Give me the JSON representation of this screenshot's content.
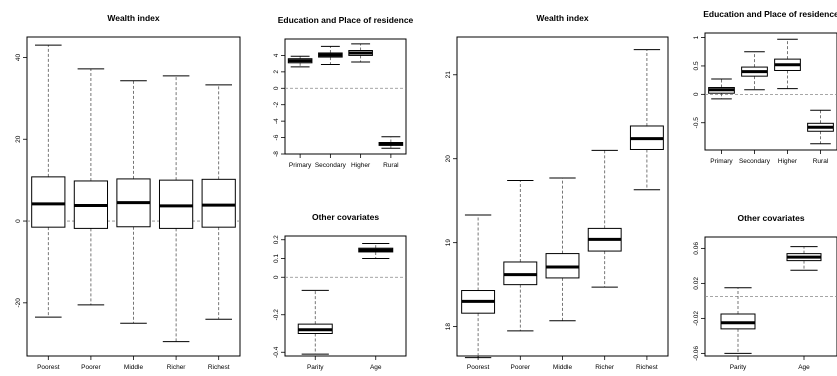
{
  "chart_data": [
    {
      "type": "box",
      "title": "Wealth index",
      "categories": [
        "Poorest",
        "Poorer",
        "Middle",
        "Richer",
        "Richest"
      ],
      "ylim": [
        -33,
        45
      ],
      "yticks": [
        -20,
        0,
        20,
        40
      ],
      "ref_line": 0,
      "boxes": [
        {
          "min": -23.5,
          "q1": -1.5,
          "median": 4.2,
          "q3": 10.8,
          "max": 43.0
        },
        {
          "min": -20.5,
          "q1": -1.8,
          "median": 3.8,
          "q3": 9.8,
          "max": 37.2
        },
        {
          "min": -25.0,
          "q1": -1.4,
          "median": 4.5,
          "q3": 10.3,
          "max": 34.3
        },
        {
          "min": -29.5,
          "q1": -1.8,
          "median": 3.7,
          "q3": 10.0,
          "max": 35.5
        },
        {
          "min": -24.0,
          "q1": -1.5,
          "median": 3.9,
          "q3": 10.2,
          "max": 33.3
        }
      ]
    },
    {
      "type": "box",
      "title": "Education and Place of residence",
      "categories": [
        "Primary",
        "Secondary",
        "Higher",
        "Rural"
      ],
      "ylim": [
        -8,
        6
      ],
      "yticks": [
        -8,
        -6,
        -4,
        -2,
        0,
        2,
        4
      ],
      "ref_line": 0,
      "boxes": [
        {
          "min": 2.6,
          "q1": 3.1,
          "median": 3.35,
          "q3": 3.6,
          "max": 3.9
        },
        {
          "min": 2.9,
          "q1": 3.8,
          "median": 4.05,
          "q3": 4.3,
          "max": 5.1
        },
        {
          "min": 3.2,
          "q1": 4.0,
          "median": 4.3,
          "q3": 4.6,
          "max": 5.4
        },
        {
          "min": -7.3,
          "q1": -6.95,
          "median": -6.8,
          "q3": -6.6,
          "max": -5.9
        }
      ]
    },
    {
      "type": "box",
      "title": "Other covariates",
      "categories": [
        "Parity",
        "Age"
      ],
      "ylim": [
        -0.42,
        0.22
      ],
      "yticks": [
        -0.4,
        -0.2,
        0.0,
        0.1,
        0.2
      ],
      "ref_line": 0,
      "boxes": [
        {
          "min": -0.41,
          "q1": -0.3,
          "median": -0.28,
          "q3": -0.25,
          "max": -0.07
        },
        {
          "min": 0.1,
          "q1": 0.135,
          "median": 0.145,
          "q3": 0.155,
          "max": 0.18
        }
      ]
    },
    {
      "type": "box",
      "title": "Wealth index",
      "categories": [
        "Poorest",
        "Poorer",
        "Middle",
        "Richer",
        "Richest"
      ],
      "ylim": [
        17.65,
        21.45
      ],
      "yticks": [
        18,
        19,
        20,
        21
      ],
      "boxes": [
        {
          "min": 17.63,
          "q1": 18.16,
          "median": 18.3,
          "q3": 18.43,
          "max": 19.33
        },
        {
          "min": 17.95,
          "q1": 18.5,
          "median": 18.62,
          "q3": 18.77,
          "max": 19.74
        },
        {
          "min": 18.07,
          "q1": 18.58,
          "median": 18.71,
          "q3": 18.87,
          "max": 19.77
        },
        {
          "min": 18.47,
          "q1": 18.9,
          "median": 19.04,
          "q3": 19.17,
          "max": 20.1
        },
        {
          "min": 19.63,
          "q1": 20.11,
          "median": 20.24,
          "q3": 20.39,
          "max": 21.3
        }
      ]
    },
    {
      "type": "box",
      "title": "Education and Place of residence",
      "categories": [
        "Primary",
        "Secondary",
        "Higher",
        "Rural"
      ],
      "ylim": [
        -0.98,
        1.08
      ],
      "yticks": [
        -0.5,
        0.0,
        0.5,
        1.0
      ],
      "ref_line": 0,
      "boxes": [
        {
          "min": -0.08,
          "q1": 0.02,
          "median": 0.08,
          "q3": 0.12,
          "max": 0.27
        },
        {
          "min": 0.08,
          "q1": 0.32,
          "median": 0.4,
          "q3": 0.48,
          "max": 0.75
        },
        {
          "min": 0.1,
          "q1": 0.42,
          "median": 0.52,
          "q3": 0.62,
          "max": 0.97
        },
        {
          "min": -0.87,
          "q1": -0.65,
          "median": -0.58,
          "q3": -0.51,
          "max": -0.28
        }
      ]
    },
    {
      "type": "box",
      "title": "Other covariates",
      "categories": [
        "Parity",
        "Age"
      ],
      "ylim": [
        -0.063,
        0.073
      ],
      "yticks": [
        -0.06,
        -0.02,
        0.02,
        0.06
      ],
      "ref_line": 0.005,
      "boxes": [
        {
          "min": -0.06,
          "q1": -0.032,
          "median": -0.025,
          "q3": -0.015,
          "max": 0.015
        },
        {
          "min": 0.035,
          "q1": 0.046,
          "median": 0.05,
          "q3": 0.054,
          "max": 0.062
        }
      ]
    }
  ]
}
